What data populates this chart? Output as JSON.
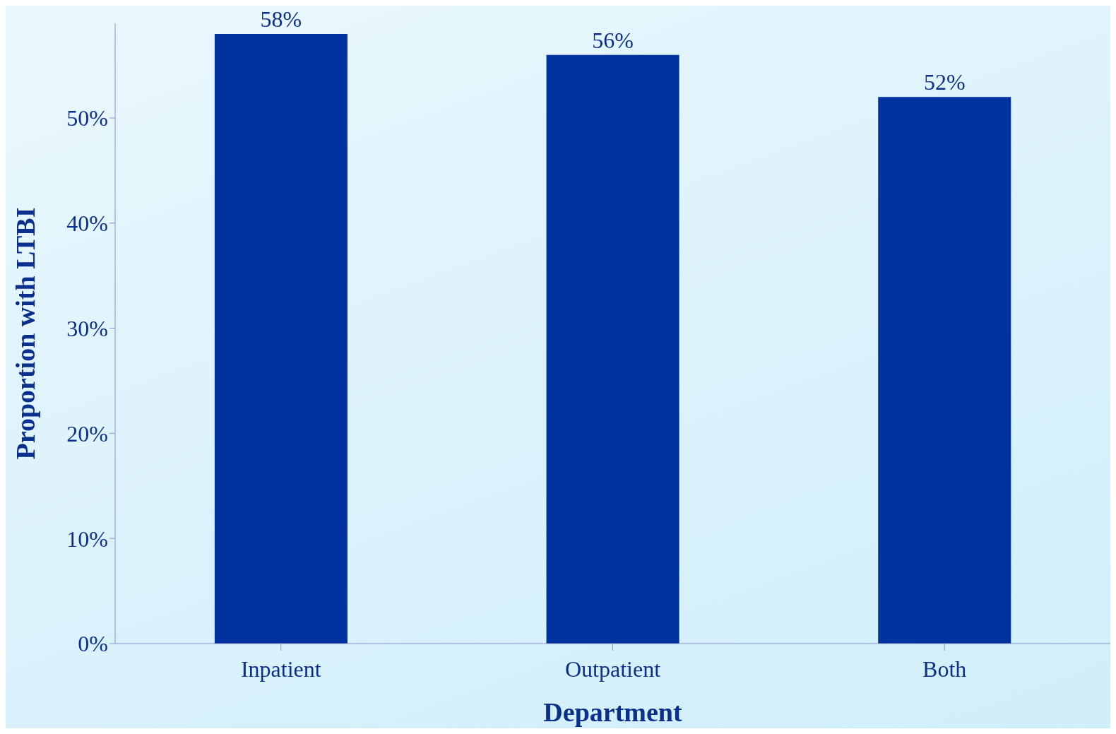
{
  "chart_data": {
    "type": "bar",
    "xlabel": "Department",
    "ylabel": "Proportion with LTBI",
    "categories": [
      "Inpatient",
      "Outpatient",
      "Both"
    ],
    "values": [
      58,
      56,
      52
    ],
    "color": "#0033a0",
    "value_labels": [
      "58%",
      "56%",
      "52%"
    ],
    "ylim": [
      0,
      59
    ],
    "yticks": [
      {
        "value": 0,
        "label": "0%"
      },
      {
        "value": 10,
        "label": "10%"
      },
      {
        "value": 20,
        "label": "20%"
      },
      {
        "value": 30,
        "label": "30%"
      },
      {
        "value": 40,
        "label": "40%"
      },
      {
        "value": 50,
        "label": "50%"
      }
    ],
    "grid": false
  }
}
